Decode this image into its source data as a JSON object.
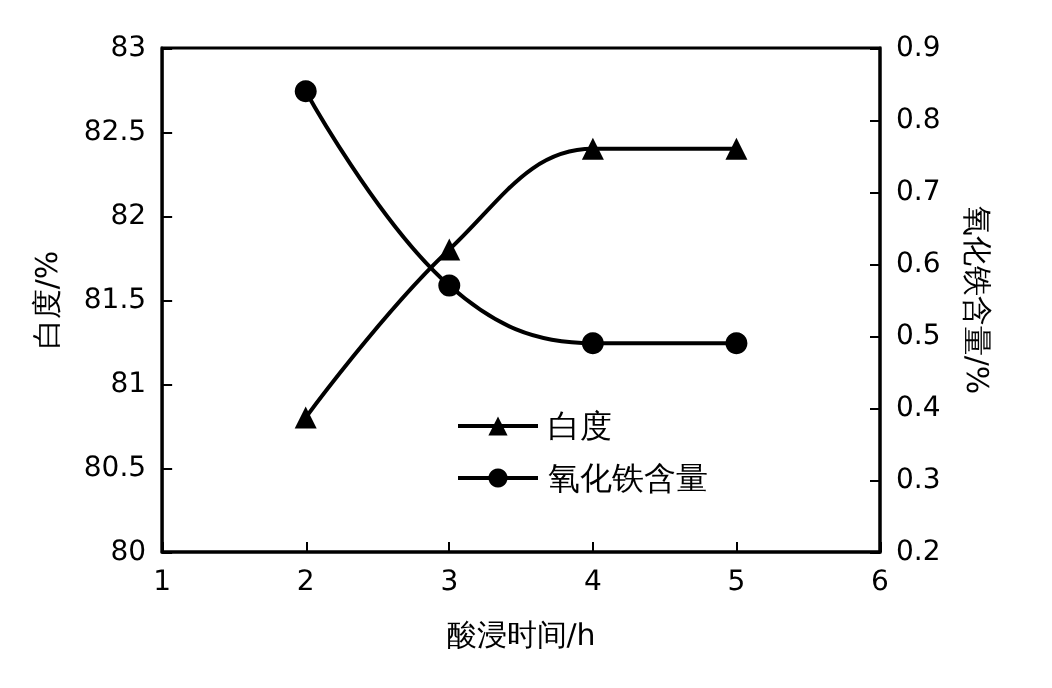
{
  "chart_data": {
    "type": "line",
    "xlabel": "酸浸时间/h",
    "ylabel": "白度/%",
    "y2label": "氧化铁含量/%",
    "x": [
      2,
      3,
      4,
      5
    ],
    "series": [
      {
        "name": "白度",
        "color": "#000000",
        "values": [
          80.8,
          81.8,
          82.4,
          82.4
        ],
        "marker": "triangle"
      },
      {
        "name": "氧化铁含量",
        "color": "#000000",
        "values": [
          0.84,
          0.57,
          0.49,
          0.49
        ],
        "marker": "circle",
        "axis": "y2"
      }
    ],
    "xlim": [
      1,
      6
    ],
    "xticks": [
      1,
      2,
      3,
      4,
      5,
      6
    ],
    "ylim": [
      80,
      83
    ],
    "yticks": [
      80,
      80.5,
      81,
      81.5,
      82,
      82.5,
      83
    ],
    "y2lim": [
      0.2,
      0.9
    ],
    "y2ticks": [
      0.2,
      0.3,
      0.4,
      0.5,
      0.6,
      0.7,
      0.8,
      0.9
    ],
    "legend": "center",
    "grid": false,
    "line_style": "solid"
  }
}
